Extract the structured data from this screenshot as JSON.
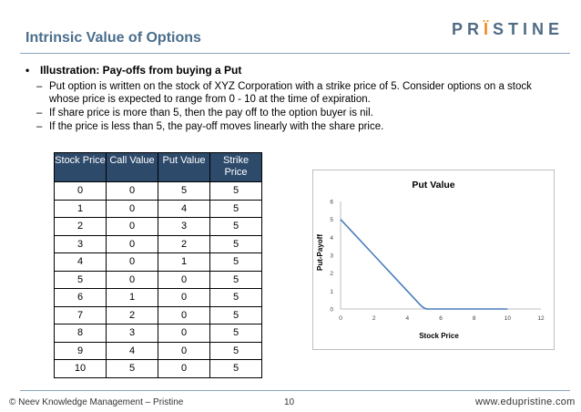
{
  "slide": {
    "title": "Intrinsic Value of Options",
    "logo_prefix": "PR",
    "logo_accent": "Ï",
    "logo_suffix": "STINE"
  },
  "bullets": {
    "main_mark": "•",
    "main": "Illustration: Pay-offs from buying a Put",
    "sub_mark": "–",
    "subs": [
      "Put option is written on the stock of XYZ Corporation with a strike price of 5. Consider options on a stock whose price is expected to range from 0 - 10 at the time of expiration.",
      "If share price is more than 5, then the pay off to the option buyer is nil.",
      "If the price is less than 5, the pay-off moves linearly with the share price."
    ]
  },
  "table": {
    "headers": [
      "Stock Price",
      "Call Value",
      "Put Value",
      "Strike Price"
    ],
    "rows": [
      [
        "0",
        "0",
        "5",
        "5"
      ],
      [
        "1",
        "0",
        "4",
        "5"
      ],
      [
        "2",
        "0",
        "3",
        "5"
      ],
      [
        "3",
        "0",
        "2",
        "5"
      ],
      [
        "4",
        "0",
        "1",
        "5"
      ],
      [
        "5",
        "0",
        "0",
        "5"
      ],
      [
        "6",
        "1",
        "0",
        "5"
      ],
      [
        "7",
        "2",
        "0",
        "5"
      ],
      [
        "8",
        "3",
        "0",
        "5"
      ],
      [
        "9",
        "4",
        "0",
        "5"
      ],
      [
        "10",
        "5",
        "0",
        "5"
      ]
    ]
  },
  "chart_data": {
    "type": "line",
    "title": "Put Value",
    "xlabel": "Stock Price",
    "ylabel": "Put-Payoff",
    "x": [
      0,
      1,
      2,
      3,
      4,
      5,
      6,
      7,
      8,
      9,
      10
    ],
    "series": [
      {
        "values": [
          5,
          4,
          3,
          2,
          1,
          0,
          0,
          0,
          0,
          0,
          0
        ]
      }
    ],
    "xlim": [
      0,
      12
    ],
    "ylim": [
      0,
      6
    ],
    "xticks": [
      "0",
      "2",
      "4",
      "6",
      "8",
      "10",
      "12"
    ],
    "yticks": [
      "0",
      "1",
      "2",
      "3",
      "4",
      "5",
      "6"
    ],
    "grid": false,
    "legend": "none",
    "line_color": "#4a7ebb"
  },
  "footer": {
    "left": "© Neev Knowledge Management – Pristine",
    "page": "10",
    "right": "www.edupristine.com"
  }
}
